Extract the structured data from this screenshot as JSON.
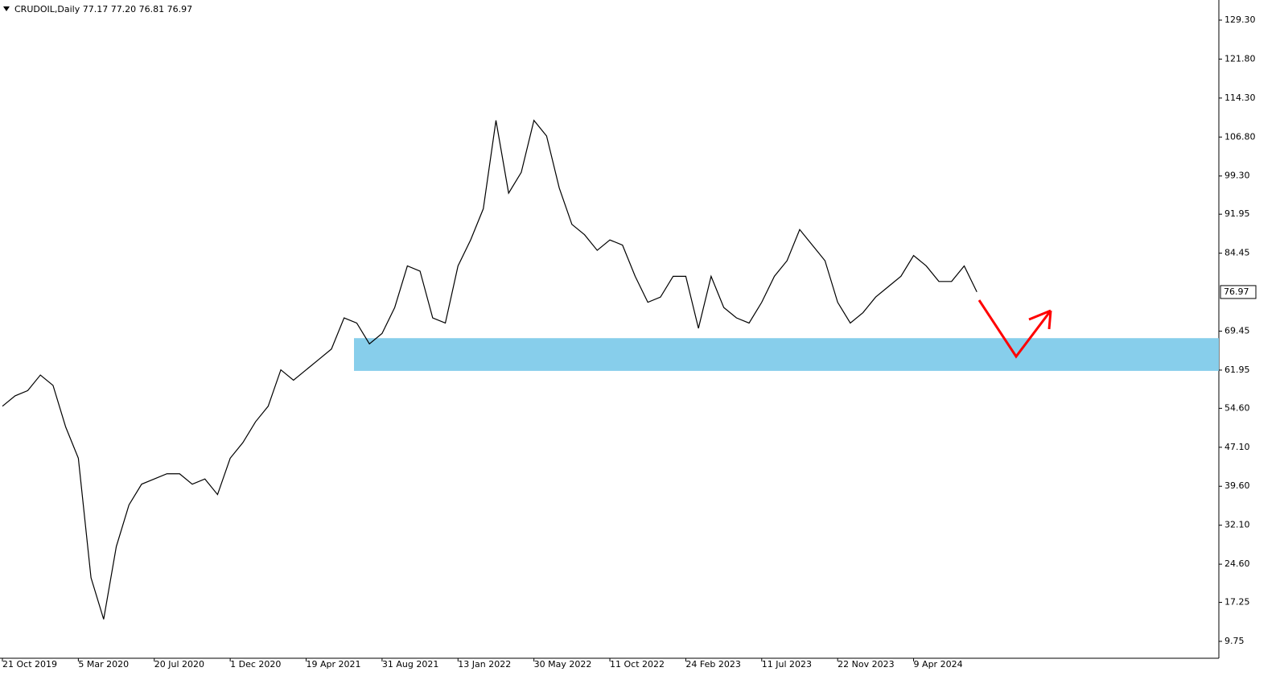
{
  "chart_data": {
    "type": "line",
    "header": "CRUDOIL,Daily  77.17 77.20 76.81 76.97",
    "categories": [
      "21 Oct 2019",
      null,
      null,
      null,
      null,
      null,
      "5 Mar 2020",
      null,
      null,
      null,
      null,
      null,
      "20 Jul 2020",
      null,
      null,
      null,
      null,
      null,
      "1 Dec 2020",
      null,
      null,
      null,
      null,
      null,
      "19 Apr 2021",
      null,
      null,
      null,
      null,
      null,
      "31 Aug 2021",
      null,
      null,
      null,
      null,
      null,
      "13 Jan 2022",
      null,
      null,
      null,
      null,
      null,
      "30 May 2022",
      null,
      null,
      null,
      null,
      null,
      "11 Oct 2022",
      null,
      null,
      null,
      null,
      null,
      "24 Feb 2023",
      null,
      null,
      null,
      null,
      null,
      "11 Jul 2023",
      null,
      null,
      null,
      null,
      null,
      "22 Nov 2023",
      null,
      null,
      null,
      null,
      null,
      "9 Apr 2024",
      null,
      null,
      null,
      null,
      null
    ],
    "series": [
      {
        "name": "CRUDOIL",
        "color": "#000000",
        "values": [
          55,
          57,
          58,
          61,
          59,
          51,
          45,
          22,
          14,
          28,
          36,
          40,
          41,
          42,
          42,
          40,
          41,
          38,
          45,
          48,
          52,
          55,
          62,
          60,
          62,
          64,
          66,
          72,
          71,
          67,
          69,
          74,
          82,
          81,
          72,
          71,
          82,
          87,
          93,
          110,
          96,
          100,
          110,
          107,
          97,
          90,
          88,
          85,
          87,
          86,
          80,
          75,
          76,
          80,
          80,
          70,
          80,
          74,
          72,
          71,
          75,
          80,
          83,
          89,
          86,
          83,
          75,
          71,
          73,
          76,
          78,
          80,
          84,
          82,
          79,
          79,
          82,
          77
        ]
      }
    ],
    "last_price": 76.97,
    "zone": {
      "top": 68.1,
      "bottom": 61.8,
      "color": "#87ceeb"
    },
    "ylim": [
      6.5,
      133.17
    ],
    "yticks": [
      {
        "value": 129.3,
        "label": "129.30"
      },
      {
        "value": 121.8,
        "label": "121.80"
      },
      {
        "value": 114.3,
        "label": "114.30"
      },
      {
        "value": 106.8,
        "label": "106.80"
      },
      {
        "value": 99.3,
        "label": "99.30"
      },
      {
        "value": 91.95,
        "label": "91.95"
      },
      {
        "value": 84.45,
        "label": "84.45"
      },
      {
        "value": 69.45,
        "label": "69.45"
      },
      {
        "value": 61.95,
        "label": "61.95"
      },
      {
        "value": 54.6,
        "label": "54.60"
      },
      {
        "value": 47.1,
        "label": "47.10"
      },
      {
        "value": 39.6,
        "label": "39.60"
      },
      {
        "value": 32.1,
        "label": "32.10"
      },
      {
        "value": 24.6,
        "label": "24.60"
      },
      {
        "value": 17.25,
        "label": "17.25"
      },
      {
        "value": 9.75,
        "label": "9.75"
      }
    ]
  }
}
